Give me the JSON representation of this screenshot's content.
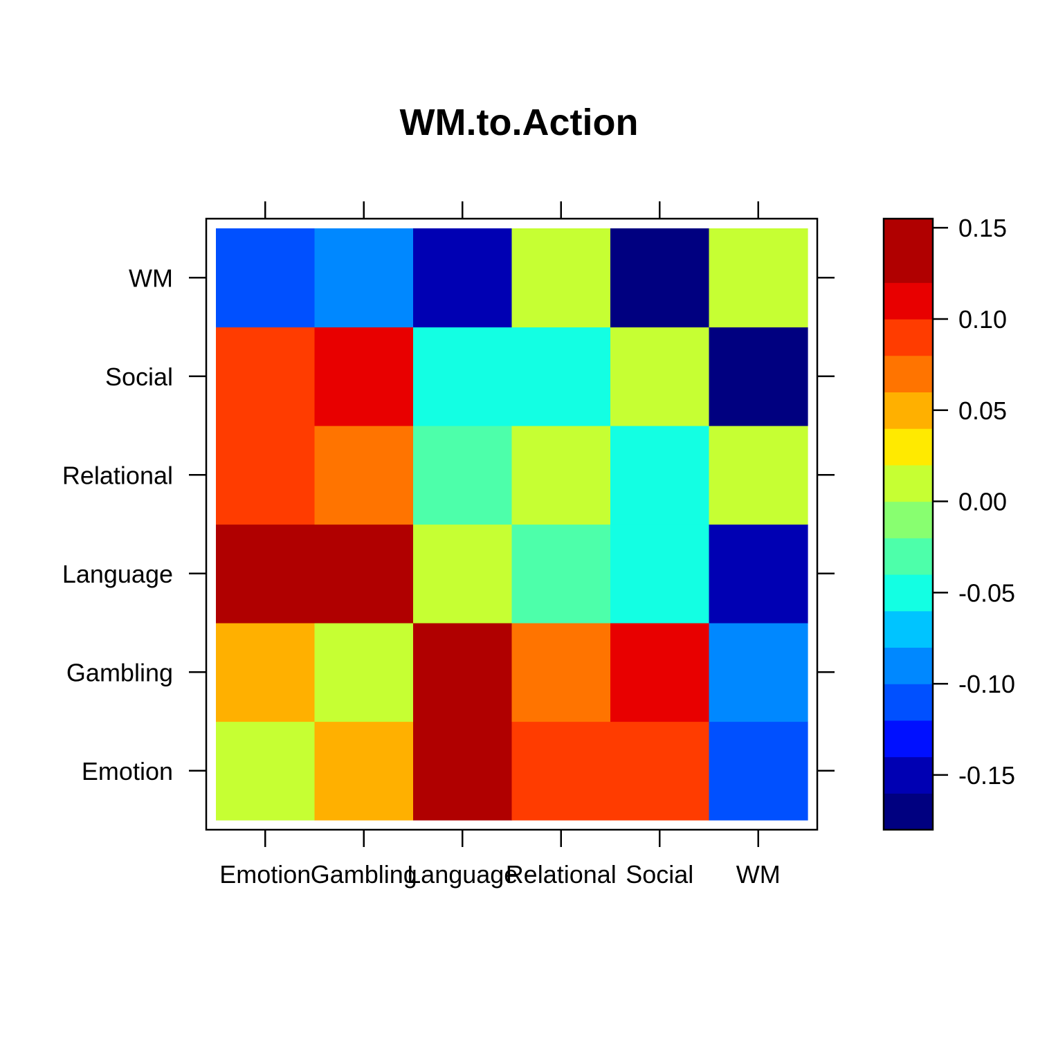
{
  "chart_data": {
    "type": "heatmap",
    "title": "WM.to.Action",
    "x_categories": [
      "Emotion",
      "Gambling",
      "Language",
      "Relational",
      "Social",
      "WM"
    ],
    "y_categories": [
      "Emotion",
      "Gambling",
      "Language",
      "Relational",
      "Social",
      "WM"
    ],
    "values": [
      [
        0.005,
        0.045,
        0.125,
        0.085,
        0.085,
        -0.115
      ],
      [
        0.045,
        0.005,
        0.145,
        0.065,
        0.105,
        -0.085
      ],
      [
        0.125,
        0.145,
        0.005,
        -0.035,
        -0.055,
        -0.155
      ],
      [
        0.085,
        0.065,
        -0.035,
        0.005,
        -0.055,
        0.005
      ],
      [
        0.085,
        0.105,
        -0.055,
        -0.055,
        0.005,
        -0.175
      ],
      [
        -0.115,
        -0.085,
        -0.155,
        0.005,
        -0.175,
        0.005
      ]
    ],
    "value_range": [
      -0.18,
      0.155
    ],
    "colorbar": {
      "breaks": [
        -0.18,
        -0.16,
        -0.14,
        -0.12,
        -0.1,
        -0.08,
        -0.06,
        -0.04,
        -0.02,
        0.0,
        0.02,
        0.04,
        0.06,
        0.08,
        0.1,
        0.12,
        0.14,
        0.155
      ],
      "colors": [
        "#000080",
        "#0000b3",
        "#0010ff",
        "#0050ff",
        "#0088ff",
        "#00c4ff",
        "#13ffe3",
        "#4dffaa",
        "#88ff70",
        "#c6ff33",
        "#ffea00",
        "#ffb000",
        "#ff7400",
        "#ff3c00",
        "#e80000",
        "#b00000",
        "#b00000"
      ],
      "tick_values": [
        0.15,
        0.1,
        0.05,
        0.0,
        -0.05,
        -0.1,
        -0.15
      ],
      "tick_labels": [
        "0.15",
        "0.10",
        "0.05",
        "0.00",
        "-0.05",
        "-0.10",
        "-0.15"
      ]
    },
    "grid": false,
    "legend": "colorbar right"
  }
}
